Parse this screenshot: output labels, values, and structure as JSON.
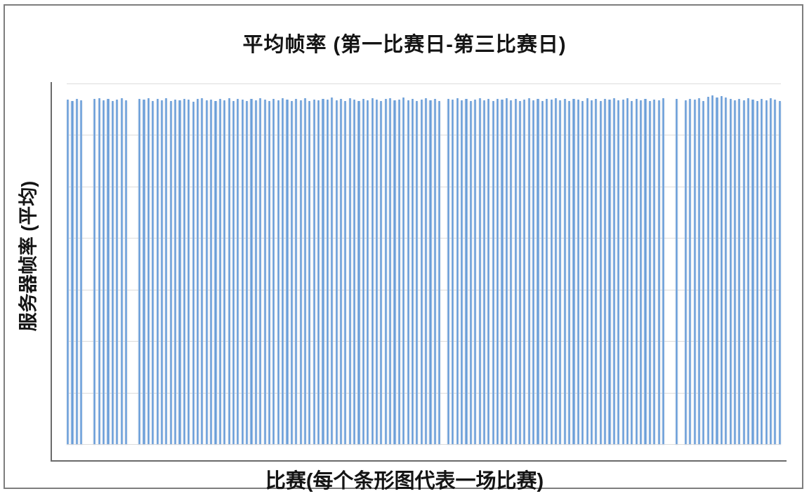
{
  "page": {
    "background": "#ffffff",
    "frame_border_color": "#7d7d7d"
  },
  "chart_data": {
    "type": "bar",
    "title": "平均帧率 (第一比赛日-第三比赛日)",
    "xlabel": "比赛(每个条形图代表一场比赛)",
    "ylabel": "服务器帧率 (平均)",
    "x_tick_labels": [],
    "y_tick_labels": [],
    "ylim": [
      0,
      100
    ],
    "grid": "horizontal",
    "gridline_count": 8,
    "legend": "none",
    "bar_color": "#5b94d4",
    "bar_edge_color": "#b3cdec",
    "gridline_color": "#dcdcdc",
    "axis_color": "#6a6a6a",
    "values": [
      95.6,
      95.2,
      95.8,
      95.3,
      null,
      null,
      95.7,
      95.9,
      95.4,
      95.8,
      95.1,
      95.6,
      95.9,
      95.3,
      null,
      null,
      95.8,
      95.5,
      96.0,
      95.2,
      95.7,
      95.4,
      95.9,
      95.1,
      95.6,
      95.3,
      95.8,
      95.5,
      95.0,
      95.7,
      95.9,
      95.3,
      95.6,
      95.1,
      95.8,
      95.4,
      96.0,
      95.2,
      95.7,
      95.5,
      95.1,
      95.8,
      95.3,
      95.9,
      95.5,
      95.2,
      95.7,
      95.4,
      96.0,
      95.6,
      95.2,
      95.8,
      95.4,
      95.9,
      95.1,
      95.6,
      95.3,
      95.8,
      95.5,
      96.1,
      95.3,
      95.7,
      95.2,
      95.9,
      95.6,
      95.1,
      95.8,
      95.4,
      96.0,
      95.5,
      95.2,
      95.7,
      95.9,
      95.3,
      95.6,
      96.1,
      95.4,
      95.8,
      95.1,
      95.6,
      95.9,
      95.4,
      95.7,
      95.2,
      null,
      95.8,
      95.5,
      96.0,
      95.3,
      95.7,
      95.1,
      95.6,
      95.9,
      95.4,
      95.8,
      95.2,
      95.7,
      95.5,
      96.0,
      95.3,
      95.8,
      95.2,
      95.6,
      95.9,
      95.4,
      95.7,
      95.1,
      95.8,
      95.5,
      96.0,
      95.3,
      95.7,
      95.2,
      95.8,
      95.6,
      95.1,
      95.9,
      95.4,
      95.7,
      95.2,
      95.8,
      95.5,
      96.0,
      95.3,
      95.6,
      95.9,
      95.2,
      95.7,
      95.4,
      95.8,
      95.1,
      95.6,
      95.3,
      95.9,
      null,
      null,
      95.7,
      null,
      95.4,
      95.8,
      95.5,
      95.9,
      95.2,
      96.3,
      96.6,
      96.2,
      96.5,
      96.1,
      95.8,
      95.4,
      95.7,
      95.3,
      95.9,
      95.5,
      95.1,
      95.8,
      95.4,
      95.9,
      95.6,
      95.2
    ]
  }
}
